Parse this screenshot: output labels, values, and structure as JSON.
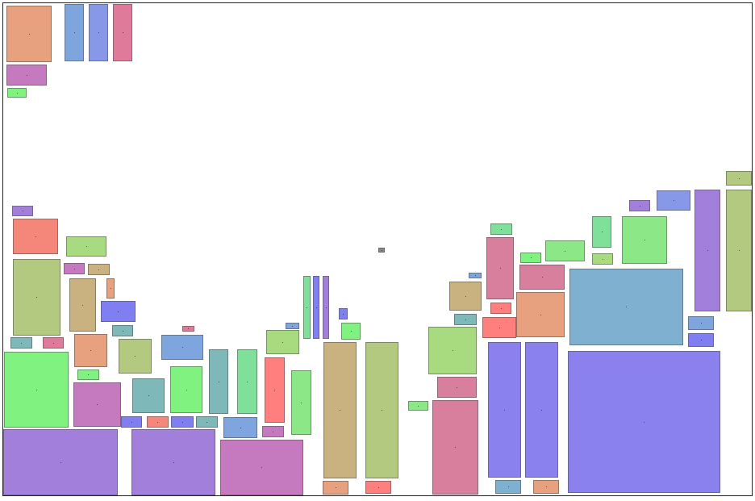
{
  "palette": {
    "salmon": "#E8A17F",
    "blue": "#7FA5DE",
    "periwinkle": "#8798E8",
    "rose": "#E07A9A",
    "magenta": "#C57AC0",
    "lime": "#7FF27F",
    "coral": "#F5867A",
    "olive": "#B3C97F",
    "tan": "#C9B27F",
    "violet": "#7F7FF2",
    "teal": "#7FB8B8",
    "mint": "#7FE09A",
    "green": "#8CE887",
    "purple": "#A27FDB",
    "pink": "#D97F9E",
    "red": "#FF7F7F",
    "sage": "#A8DB7F",
    "sky": "#7FB0CF",
    "lavender": "#8A80EE",
    "gray": "#888888"
  }
}
